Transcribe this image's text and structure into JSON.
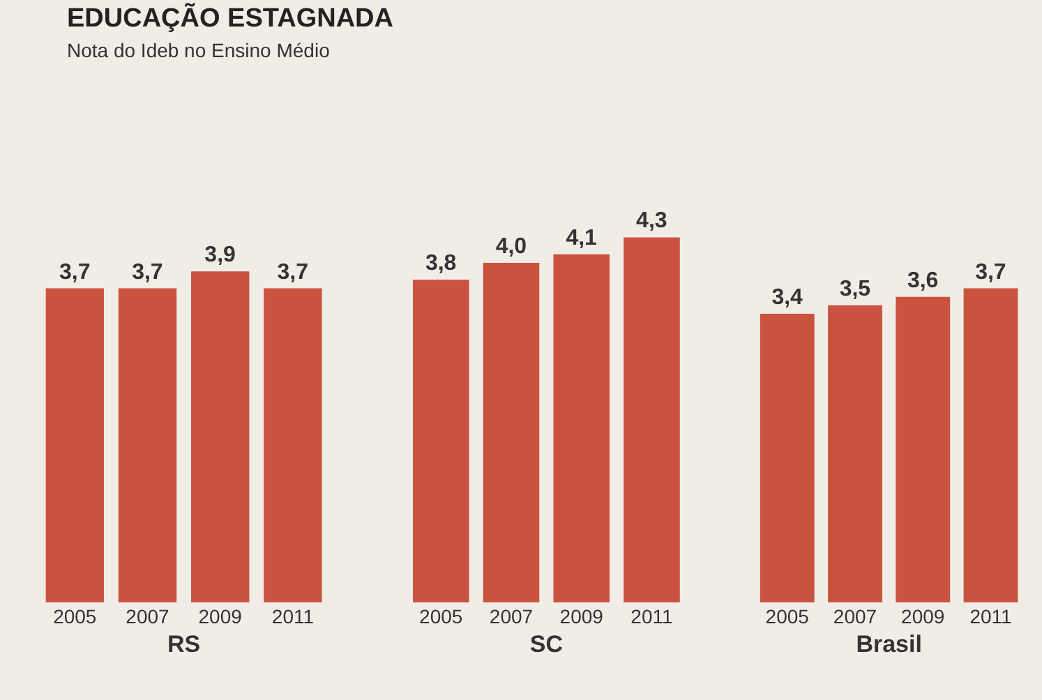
{
  "chart_data": [
    {
      "type": "bar",
      "title": "EDUCAÇÃO ESTAGNADA",
      "subtitle": "Nota do Ideb no Ensino Médio",
      "xlabel": "RS",
      "categories": [
        "2005",
        "2007",
        "2009",
        "2011"
      ],
      "values": [
        3.7,
        3.7,
        3.9,
        3.7
      ],
      "value_labels": [
        "3,7",
        "3,7",
        "3,9",
        "3,7"
      ],
      "color": "#c9533f",
      "tick_labels": "x",
      "grid": false,
      "legend": false
    },
    {
      "type": "bar",
      "xlabel": "SC",
      "categories": [
        "2005",
        "2007",
        "2009",
        "2011"
      ],
      "values": [
        3.8,
        4.0,
        4.1,
        4.3
      ],
      "value_labels": [
        "3,8",
        "4,0",
        "4,1",
        "4,3"
      ],
      "color": "#c9533f",
      "tick_labels": "x",
      "grid": false,
      "legend": false
    },
    {
      "type": "bar",
      "xlabel": "Brasil",
      "categories": [
        "2005",
        "2007",
        "2009",
        "2011"
      ],
      "values": [
        3.4,
        3.5,
        3.6,
        3.7
      ],
      "value_labels": [
        "3,4",
        "3,5",
        "3,6",
        "3,7"
      ],
      "color": "#c9533f",
      "tick_labels": "x",
      "grid": false,
      "legend": false
    }
  ]
}
